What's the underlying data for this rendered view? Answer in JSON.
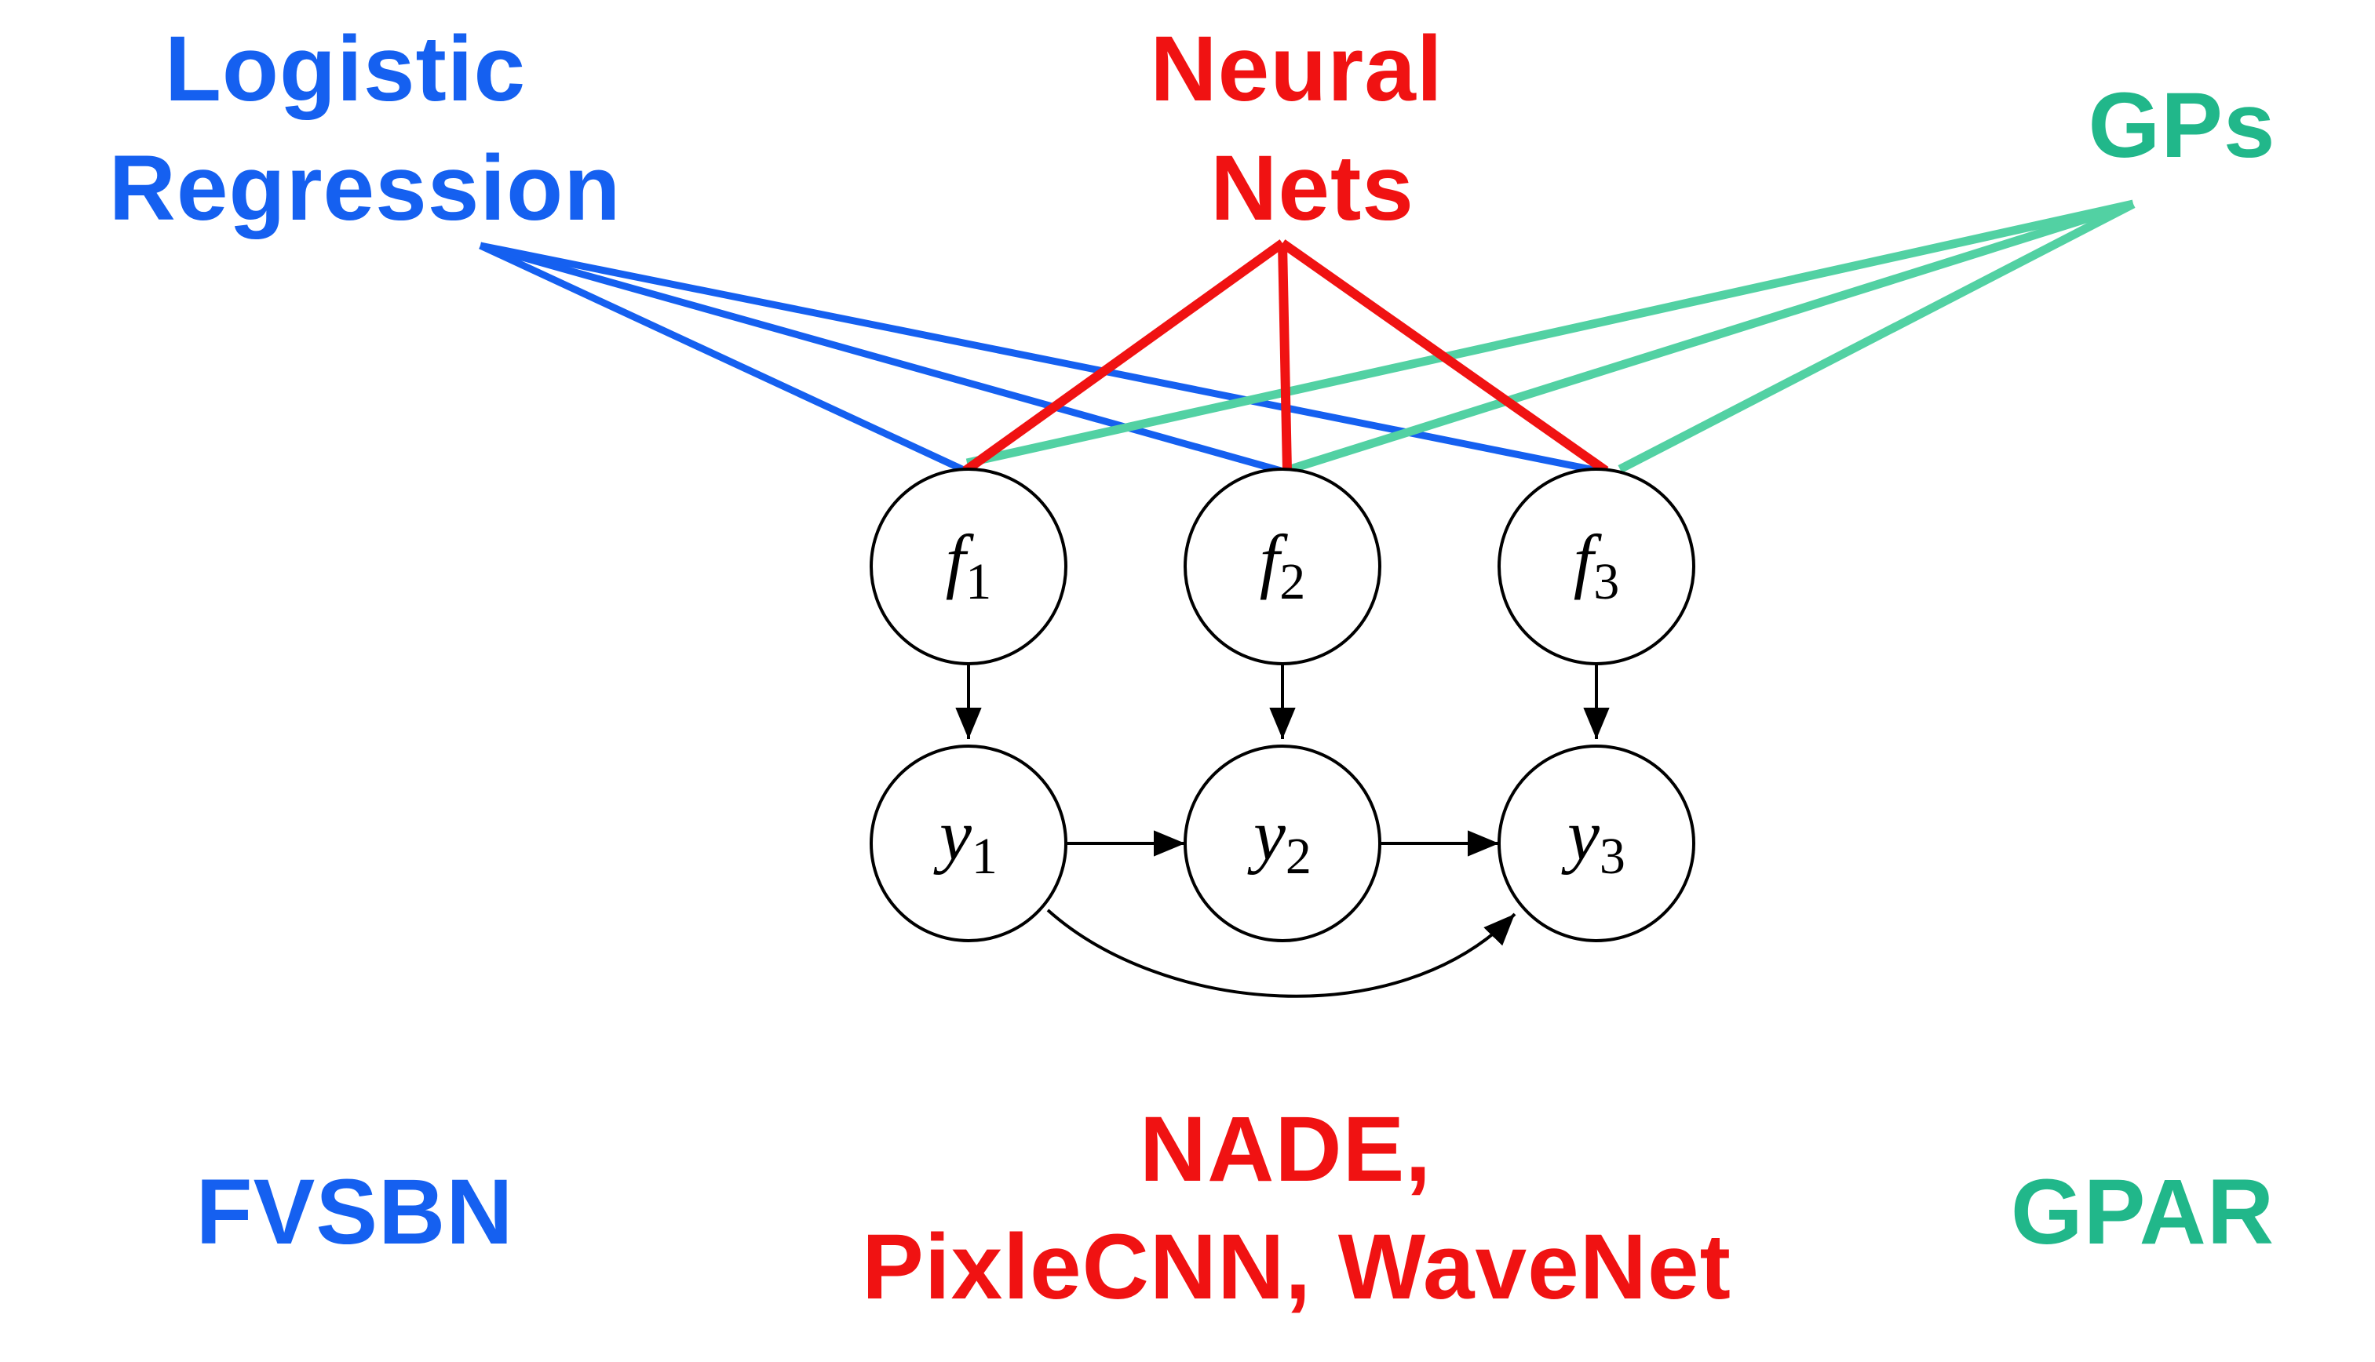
{
  "colors": {
    "blue": "#1560f0",
    "red": "#f01212",
    "green": "#21b78a",
    "green_line": "#52d1a3",
    "node": "#000000"
  },
  "labels": {
    "logistic": [
      "Logistic",
      "Regression"
    ],
    "neural": [
      "Neural",
      "Nets"
    ],
    "gps": "GPs",
    "fvsbn": "FVSBN",
    "nade": [
      "NADE,",
      "PixleCNN, WaveNet"
    ],
    "gpar": "GPAR"
  },
  "nodes": {
    "f1": {
      "var": "f",
      "sub": "1"
    },
    "f2": {
      "var": "f",
      "sub": "2"
    },
    "f3": {
      "var": "f",
      "sub": "3"
    },
    "y1": {
      "var": "y",
      "sub": "1"
    },
    "y2": {
      "var": "y",
      "sub": "2"
    },
    "y3": {
      "var": "y",
      "sub": "3"
    }
  },
  "edges": [
    [
      "f1",
      "y1"
    ],
    [
      "f2",
      "y2"
    ],
    [
      "f3",
      "y3"
    ],
    [
      "y1",
      "y2"
    ],
    [
      "y2",
      "y3"
    ],
    [
      "y1",
      "y3"
    ]
  ],
  "connections": {
    "logistic": [
      "f1",
      "f2",
      "f3"
    ],
    "neural": [
      "f1",
      "f2",
      "f3"
    ],
    "gps": [
      "f1",
      "f2",
      "f3"
    ]
  }
}
